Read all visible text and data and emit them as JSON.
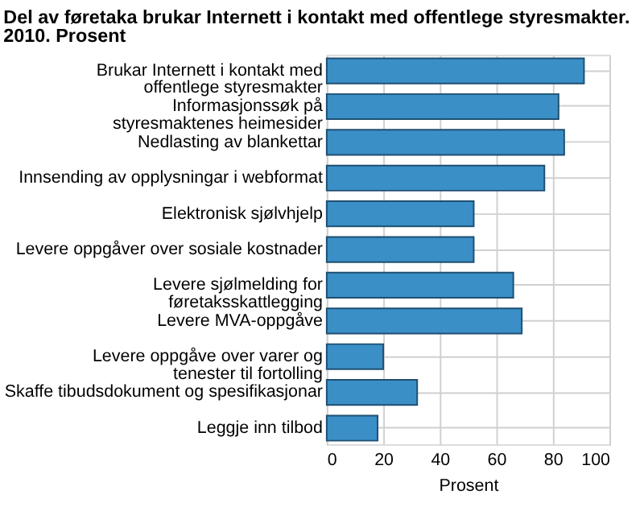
{
  "chart_data": {
    "type": "bar",
    "orientation": "horizontal",
    "title": "Del av føretaka brukar Internett i kontakt med offentlege styresmakter. 2010. Prosent",
    "xlabel": "Prosent",
    "categories": [
      "Brukar Internett i kontakt med offentlege styresmakter",
      "Informasjonssøk på styresmaktenes heimesider",
      "Nedlasting av blankettar",
      "Innsending av opplysningar i webformat",
      "Elektronisk sjølvhjelp",
      "Levere oppgåver over sosiale kostnader",
      "Levere sjølmelding for føretaksskattlegging",
      "Levere MVA-oppgåve",
      "Levere oppgåve over varer og tenester til fortolling",
      "Skaffe tibudsdokument og spesifikasjonar",
      "Leggje inn tilbod"
    ],
    "values": [
      91,
      82,
      84,
      77,
      52,
      52,
      66,
      69,
      20,
      32,
      18
    ],
    "color": "#3a8fc6",
    "xlim": [
      0,
      100
    ],
    "xticks": [
      0,
      20,
      40,
      60,
      80,
      100
    ],
    "grid": true
  }
}
